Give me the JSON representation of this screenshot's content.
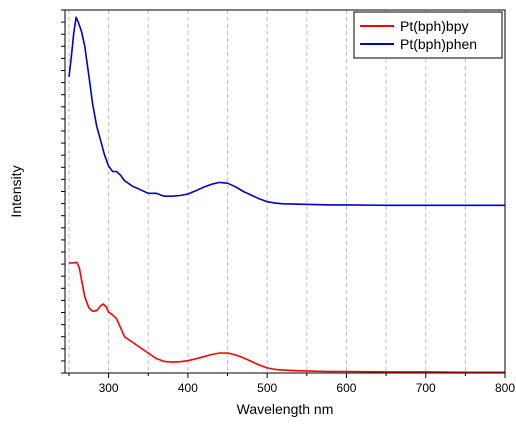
{
  "chart_data": {
    "type": "line",
    "xlabel": "Wavelength nm",
    "ylabel": "Intensity",
    "xlim": [
      245,
      800
    ],
    "ylim": [
      0,
      1.0
    ],
    "xticks": [
      300,
      400,
      500,
      600,
      700,
      800
    ],
    "x_minor_ticks": [
      250,
      350,
      450,
      550,
      650,
      750
    ],
    "grid": "vertical-dashed",
    "y_ticks_labeled": false,
    "legend_position": "top-right",
    "series": [
      {
        "name": "Pt(bph)bpy",
        "color": "#ff0000",
        "x": [
          250,
          255,
          260,
          263,
          266,
          270,
          275,
          280,
          285,
          290,
          293,
          297,
          300,
          305,
          310,
          315,
          320,
          330,
          340,
          350,
          360,
          370,
          380,
          390,
          400,
          410,
          420,
          430,
          440,
          450,
          460,
          470,
          480,
          490,
          500,
          510,
          520,
          540,
          560,
          580,
          600,
          650,
          700,
          750,
          800
        ],
        "y": [
          0.303,
          0.303,
          0.305,
          0.29,
          0.255,
          0.21,
          0.18,
          0.17,
          0.172,
          0.185,
          0.19,
          0.182,
          0.168,
          0.16,
          0.15,
          0.125,
          0.1,
          0.085,
          0.07,
          0.055,
          0.04,
          0.032,
          0.03,
          0.031,
          0.034,
          0.039,
          0.045,
          0.051,
          0.055,
          0.055,
          0.05,
          0.042,
          0.032,
          0.022,
          0.014,
          0.01,
          0.008,
          0.006,
          0.005,
          0.004,
          0.004,
          0.003,
          0.003,
          0.002,
          0.002
        ]
      },
      {
        "name": "Pt(bph)phen",
        "color": "#0000cc",
        "x": [
          250,
          253,
          256,
          259,
          262,
          266,
          270,
          275,
          280,
          285,
          290,
          295,
          300,
          305,
          310,
          315,
          320,
          330,
          340,
          350,
          360,
          370,
          380,
          390,
          400,
          410,
          420,
          430,
          440,
          450,
          460,
          470,
          480,
          490,
          500,
          510,
          520,
          540,
          560,
          580,
          600,
          650,
          700,
          750,
          800
        ],
        "y": [
          0.816,
          0.87,
          0.935,
          0.98,
          0.965,
          0.94,
          0.9,
          0.82,
          0.74,
          0.68,
          0.64,
          0.6,
          0.57,
          0.555,
          0.555,
          0.545,
          0.53,
          0.515,
          0.505,
          0.495,
          0.495,
          0.487,
          0.487,
          0.489,
          0.493,
          0.502,
          0.512,
          0.52,
          0.525,
          0.523,
          0.513,
          0.5,
          0.49,
          0.48,
          0.472,
          0.468,
          0.466,
          0.465,
          0.464,
          0.463,
          0.463,
          0.462,
          0.462,
          0.462,
          0.462
        ]
      }
    ]
  }
}
